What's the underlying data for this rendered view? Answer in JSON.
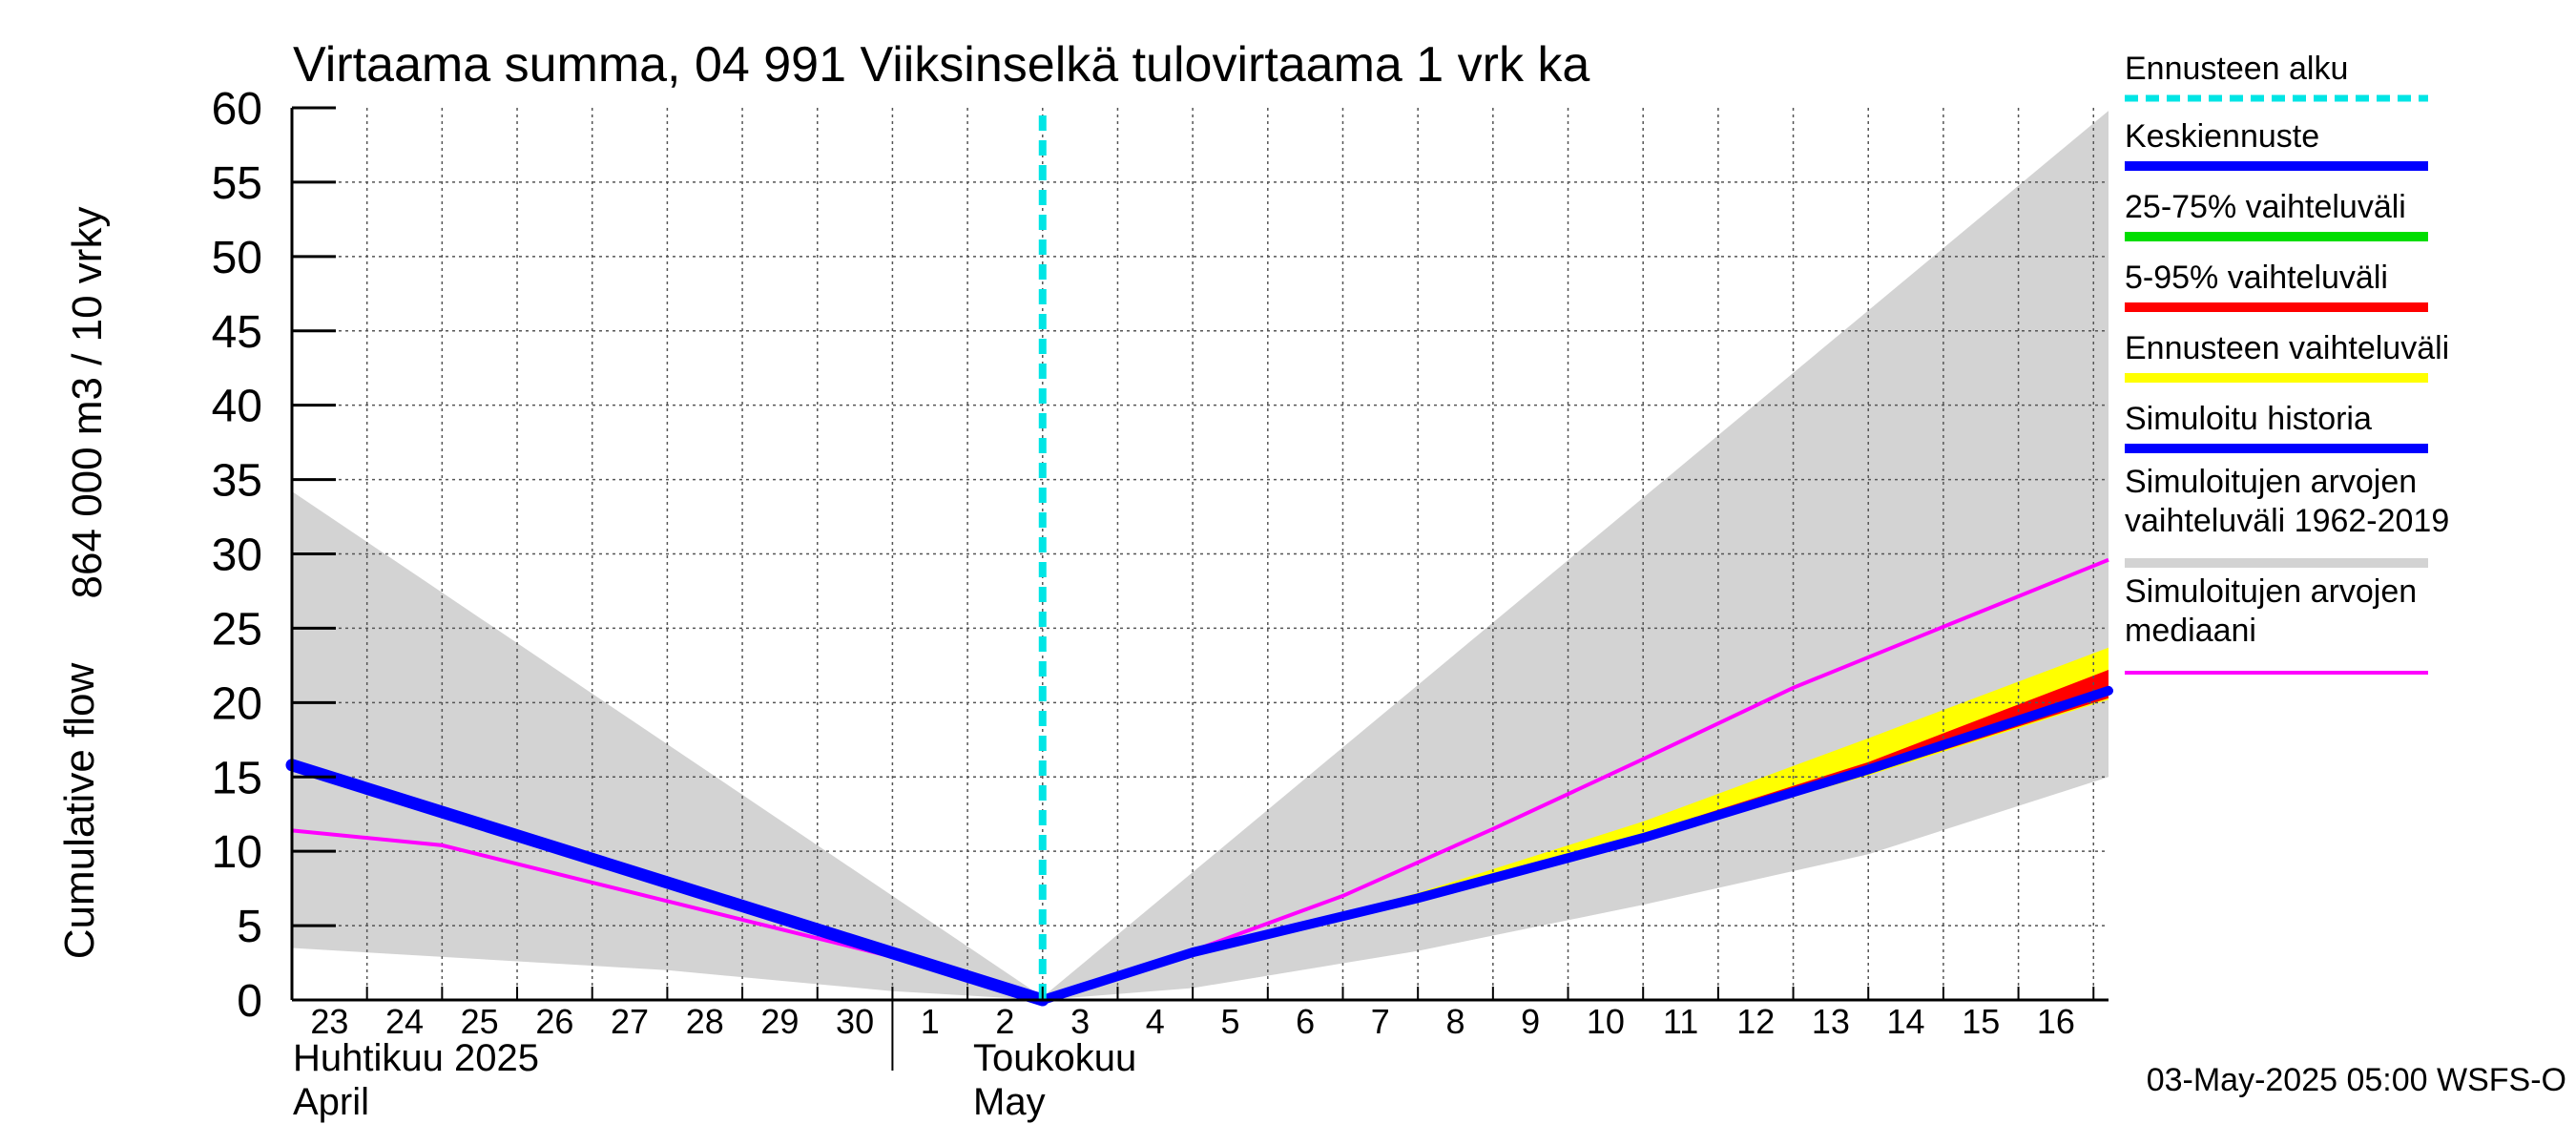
{
  "chart_data": {
    "type": "area",
    "title": "Virtaama summa, 04 991 Viiksinselkä tulovirtaama 1 vrk ka",
    "ylabel_line1": "864 000 m3 / 10 vrky",
    "ylabel_line2": "Cumulative flow",
    "ylim": [
      0,
      60
    ],
    "yticks": [
      "0",
      "5",
      "10",
      "15",
      "20",
      "25",
      "30",
      "35",
      "40",
      "45",
      "50",
      "55",
      "60"
    ],
    "x_day_labels": [
      "23",
      "24",
      "25",
      "26",
      "27",
      "28",
      "29",
      "30",
      "1",
      "2",
      "3",
      "4",
      "5",
      "6",
      "7",
      "8",
      "9",
      "10",
      "11",
      "12",
      "13",
      "14",
      "15",
      "16"
    ],
    "xlim_days": [
      0,
      24.2
    ],
    "month_labels": {
      "april_fi": "Huhtikuu  2025",
      "april_en": "April",
      "may_fi": "Toukokuu",
      "may_en": "May"
    },
    "month_divider_day": 8,
    "forecast_start_day": 10,
    "timestamp": "03-May-2025 05:00 WSFS-O",
    "grid": true,
    "colors": {
      "forecast_start": "#00e5e5",
      "mean_forecast": "#0000ff",
      "p25_75": "#00dd00",
      "p5_95": "#ff0000",
      "forecast_range": "#ffff00",
      "simulated_history": "#0000ff",
      "sim_range": "#d3d3d3",
      "sim_median": "#ff00ff"
    },
    "legend": [
      {
        "key": "forecast_start",
        "label": "Ennusteen alku"
      },
      {
        "key": "mean_forecast",
        "label": "Keskiennuste"
      },
      {
        "key": "p25_75",
        "label": "25-75% vaihteluväli"
      },
      {
        "key": "p5_95",
        "label": "5-95% vaihteluväli"
      },
      {
        "key": "forecast_range",
        "label": "Ennusteen vaihteluväli"
      },
      {
        "key": "simulated_history",
        "label": "Simuloitu historia"
      },
      {
        "key": "sim_range",
        "label": "Simuloitujen arvojen",
        "label2": "vaihteluväli 1962-2019"
      },
      {
        "key": "sim_median",
        "label": "Simuloitujen arvojen",
        "label2": "mediaani"
      }
    ],
    "series": {
      "sim_range_upper": {
        "x": [
          0,
          10,
          24.2
        ],
        "y": [
          34.2,
          0.2,
          59.8
        ]
      },
      "sim_range_lower": {
        "x": [
          0,
          5,
          8,
          10,
          12,
          15,
          18,
          21,
          24.2
        ],
        "y": [
          3.5,
          2.0,
          0.6,
          0.0,
          0.8,
          3.3,
          6.4,
          9.8,
          15.0
        ]
      },
      "sim_median": {
        "x": [
          0,
          2,
          4,
          6,
          8,
          10,
          12,
          14,
          16,
          18,
          20,
          22,
          24.2
        ],
        "y": [
          11.4,
          10.4,
          7.9,
          5.4,
          2.9,
          0.0,
          3.3,
          7.0,
          11.5,
          16.2,
          21.0,
          25.1,
          29.6
        ]
      },
      "simulated_history": {
        "x": [
          0,
          10
        ],
        "y": [
          15.8,
          0.0
        ]
      },
      "forecast_range_upper": {
        "x": [
          10,
          12,
          15,
          18,
          21,
          24.2
        ],
        "y": [
          0.0,
          3.3,
          7.2,
          12.0,
          17.6,
          23.7
        ]
      },
      "forecast_range_lower": {
        "x": [
          10,
          12,
          15,
          18,
          21,
          24.2
        ],
        "y": [
          0.0,
          3.2,
          6.8,
          10.8,
          15.1,
          20.2
        ]
      },
      "p5_95_upper": {
        "x": [
          10,
          12,
          15,
          18,
          21,
          24.2
        ],
        "y": [
          0.0,
          3.3,
          7.0,
          11.2,
          16.0,
          22.2
        ]
      },
      "p5_95_lower": {
        "x": [
          10,
          12,
          15,
          18,
          21,
          24.2
        ],
        "y": [
          0.0,
          3.2,
          6.8,
          10.8,
          15.2,
          20.3
        ]
      },
      "p25_75_upper": {
        "x": [
          10,
          12,
          15,
          18,
          21,
          24.2
        ],
        "y": [
          0.0,
          3.25,
          6.9,
          11.0,
          15.6,
          21.0
        ]
      },
      "p25_75_lower": {
        "x": [
          10,
          12,
          15,
          18,
          21,
          24.2
        ],
        "y": [
          0.0,
          3.2,
          6.8,
          10.9,
          15.4,
          20.6
        ]
      },
      "mean_forecast": {
        "x": [
          10,
          12,
          15,
          18,
          21,
          24.2
        ],
        "y": [
          0.0,
          3.2,
          6.85,
          10.9,
          15.5,
          20.8
        ]
      }
    }
  }
}
